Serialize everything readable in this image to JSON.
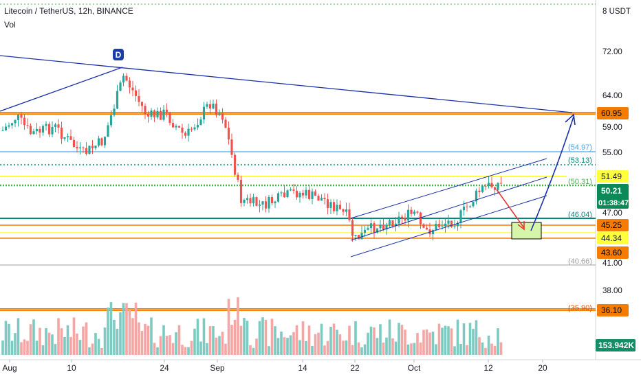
{
  "header": {
    "title": "Litecoin / TetherUS, 12h, BINANCE",
    "volume_label": "Vol"
  },
  "currency": "8 USDT",
  "annotation_marker": "D",
  "countdown": "01:38:47",
  "colors": {
    "up": "#26a69a",
    "down": "#ef5350",
    "vol_up": "#7ccac2",
    "vol_down": "#f4a6a4",
    "orange": "#f57c00",
    "yellow": "#ffff3c",
    "lightblue": "#64b5f6",
    "teal": "#00897b",
    "green_dotted": "#4caf50",
    "navy": "#1a2fa8"
  },
  "chart_data": {
    "type": "candlestick",
    "symbol": "Litecoin / TetherUS",
    "interval": "12h",
    "exchange": "BINANCE",
    "x_ticks": [
      "Aug",
      "10",
      "24",
      "Sep",
      "14",
      "22",
      "Oct",
      "12",
      "20"
    ],
    "price_ticks": [
      "72.00",
      "64.00",
      "59.00",
      "55.00",
      "47.00",
      "41.00",
      "38.00"
    ],
    "last_price": "50.21",
    "current_volume": "153.942K",
    "level_badges": [
      {
        "value": "60.95",
        "kind": "orange"
      },
      {
        "value": "51.49",
        "kind": "yellow"
      },
      {
        "value": "45.25",
        "kind": "orange"
      },
      {
        "value": "44.34",
        "kind": "yellow"
      },
      {
        "value": "43.60",
        "kind": "orange"
      },
      {
        "value": "36.10",
        "kind": "orange"
      }
    ],
    "level_labels": [
      {
        "value": "(54.97)",
        "kind": "lightblue"
      },
      {
        "value": "(53.13)",
        "kind": "teal"
      },
      {
        "value": "(50.31)",
        "kind": "green"
      },
      {
        "value": "(46.04)",
        "kind": "teal"
      },
      {
        "value": "(40.66)",
        "kind": "gray"
      },
      {
        "value": "(35.90)",
        "kind": "orange"
      }
    ]
  }
}
